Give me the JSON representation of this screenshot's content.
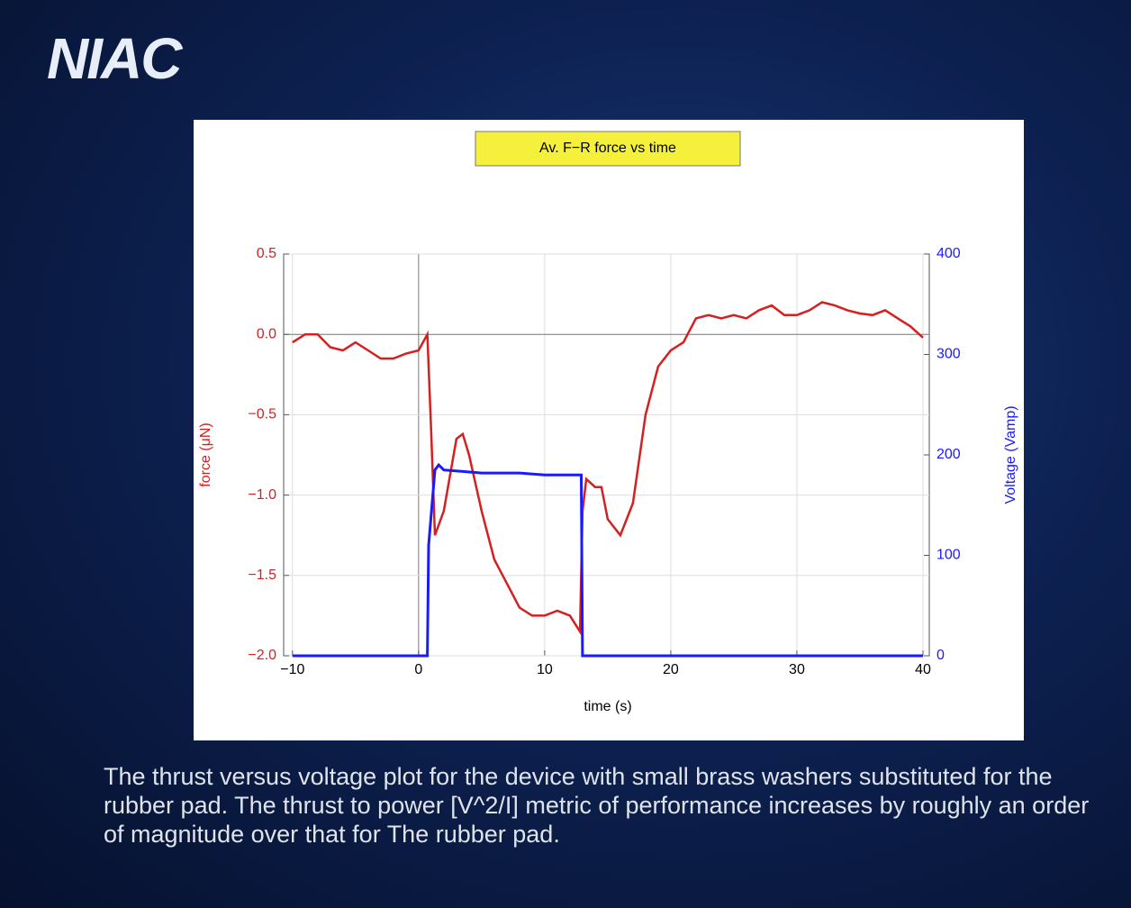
{
  "logo": "NIAC",
  "caption": "The thrust versus voltage plot for the device with small brass washers substituted for the rubber pad.  The thrust to power [V^2/I] metric of performance increases by roughly an order of magnitude over that for The rubber pad.",
  "chart_data": {
    "type": "line",
    "title": "Av. F−R force vs time",
    "x_label": "time (s)",
    "y_label": "force (μN)",
    "y2_label": "Voltage (Vamp)",
    "xlim": [
      -10.7,
      40.5
    ],
    "xticks": [
      {
        "value": -10,
        "label": "−10"
      },
      0,
      10,
      20,
      30,
      40
    ],
    "ylim": [
      -2.0,
      0.5
    ],
    "yticks": [
      {
        "value": -2.0,
        "label": "−2.0"
      },
      {
        "value": -1.5,
        "label": "−1.5"
      },
      {
        "value": -1.0,
        "label": "−1.0"
      },
      {
        "value": -0.5,
        "label": "−0.5"
      },
      {
        "value": 0,
        "label": "0.0"
      },
      {
        "value": 0.5,
        "label": "0.5"
      }
    ],
    "y2lim": [
      0,
      400
    ],
    "y2ticks": [
      0,
      100,
      200,
      300,
      400
    ],
    "grid": true,
    "series": [
      {
        "name": "force",
        "color": "#d42020",
        "x": [
          -10,
          -9,
          -8,
          -7,
          -6,
          -5,
          -4,
          -3,
          -2,
          -1,
          0,
          0.7,
          1.0,
          1.3,
          2,
          3,
          3.5,
          4,
          5,
          6,
          7,
          8,
          9,
          10,
          11,
          12,
          12.8,
          13,
          13.3,
          14,
          14.5,
          15,
          16,
          17,
          18,
          19,
          20,
          21,
          22,
          23,
          24,
          25,
          26,
          27,
          28,
          29,
          30,
          31,
          32,
          33,
          34,
          35,
          36,
          37,
          38,
          39,
          40
        ],
        "values": [
          -0.05,
          0.0,
          0.0,
          -0.08,
          -0.1,
          -0.05,
          -0.1,
          -0.15,
          -0.15,
          -0.12,
          -0.1,
          0.0,
          -0.6,
          -1.25,
          -1.1,
          -0.65,
          -0.62,
          -0.75,
          -1.1,
          -1.4,
          -1.55,
          -1.7,
          -1.75,
          -1.75,
          -1.72,
          -1.75,
          -1.85,
          -1.1,
          -0.9,
          -0.95,
          -0.95,
          -1.15,
          -1.25,
          -1.05,
          -0.5,
          -0.2,
          -0.1,
          -0.05,
          0.1,
          0.12,
          0.1,
          0.12,
          0.1,
          0.15,
          0.18,
          0.12,
          0.12,
          0.15,
          0.2,
          0.18,
          0.15,
          0.13,
          0.12,
          0.15,
          0.1,
          0.05,
          -0.02
        ]
      },
      {
        "name": "voltage",
        "color": "#1a1aff",
        "axis": "y2",
        "x": [
          -10,
          0.6,
          0.7,
          0.8,
          1.0,
          1.3,
          1.6,
          2,
          5,
          8,
          10,
          12.9,
          13,
          40
        ],
        "values": [
          0,
          0,
          0,
          110,
          140,
          185,
          190,
          185,
          182,
          182,
          180,
          180,
          0,
          0
        ]
      }
    ]
  }
}
